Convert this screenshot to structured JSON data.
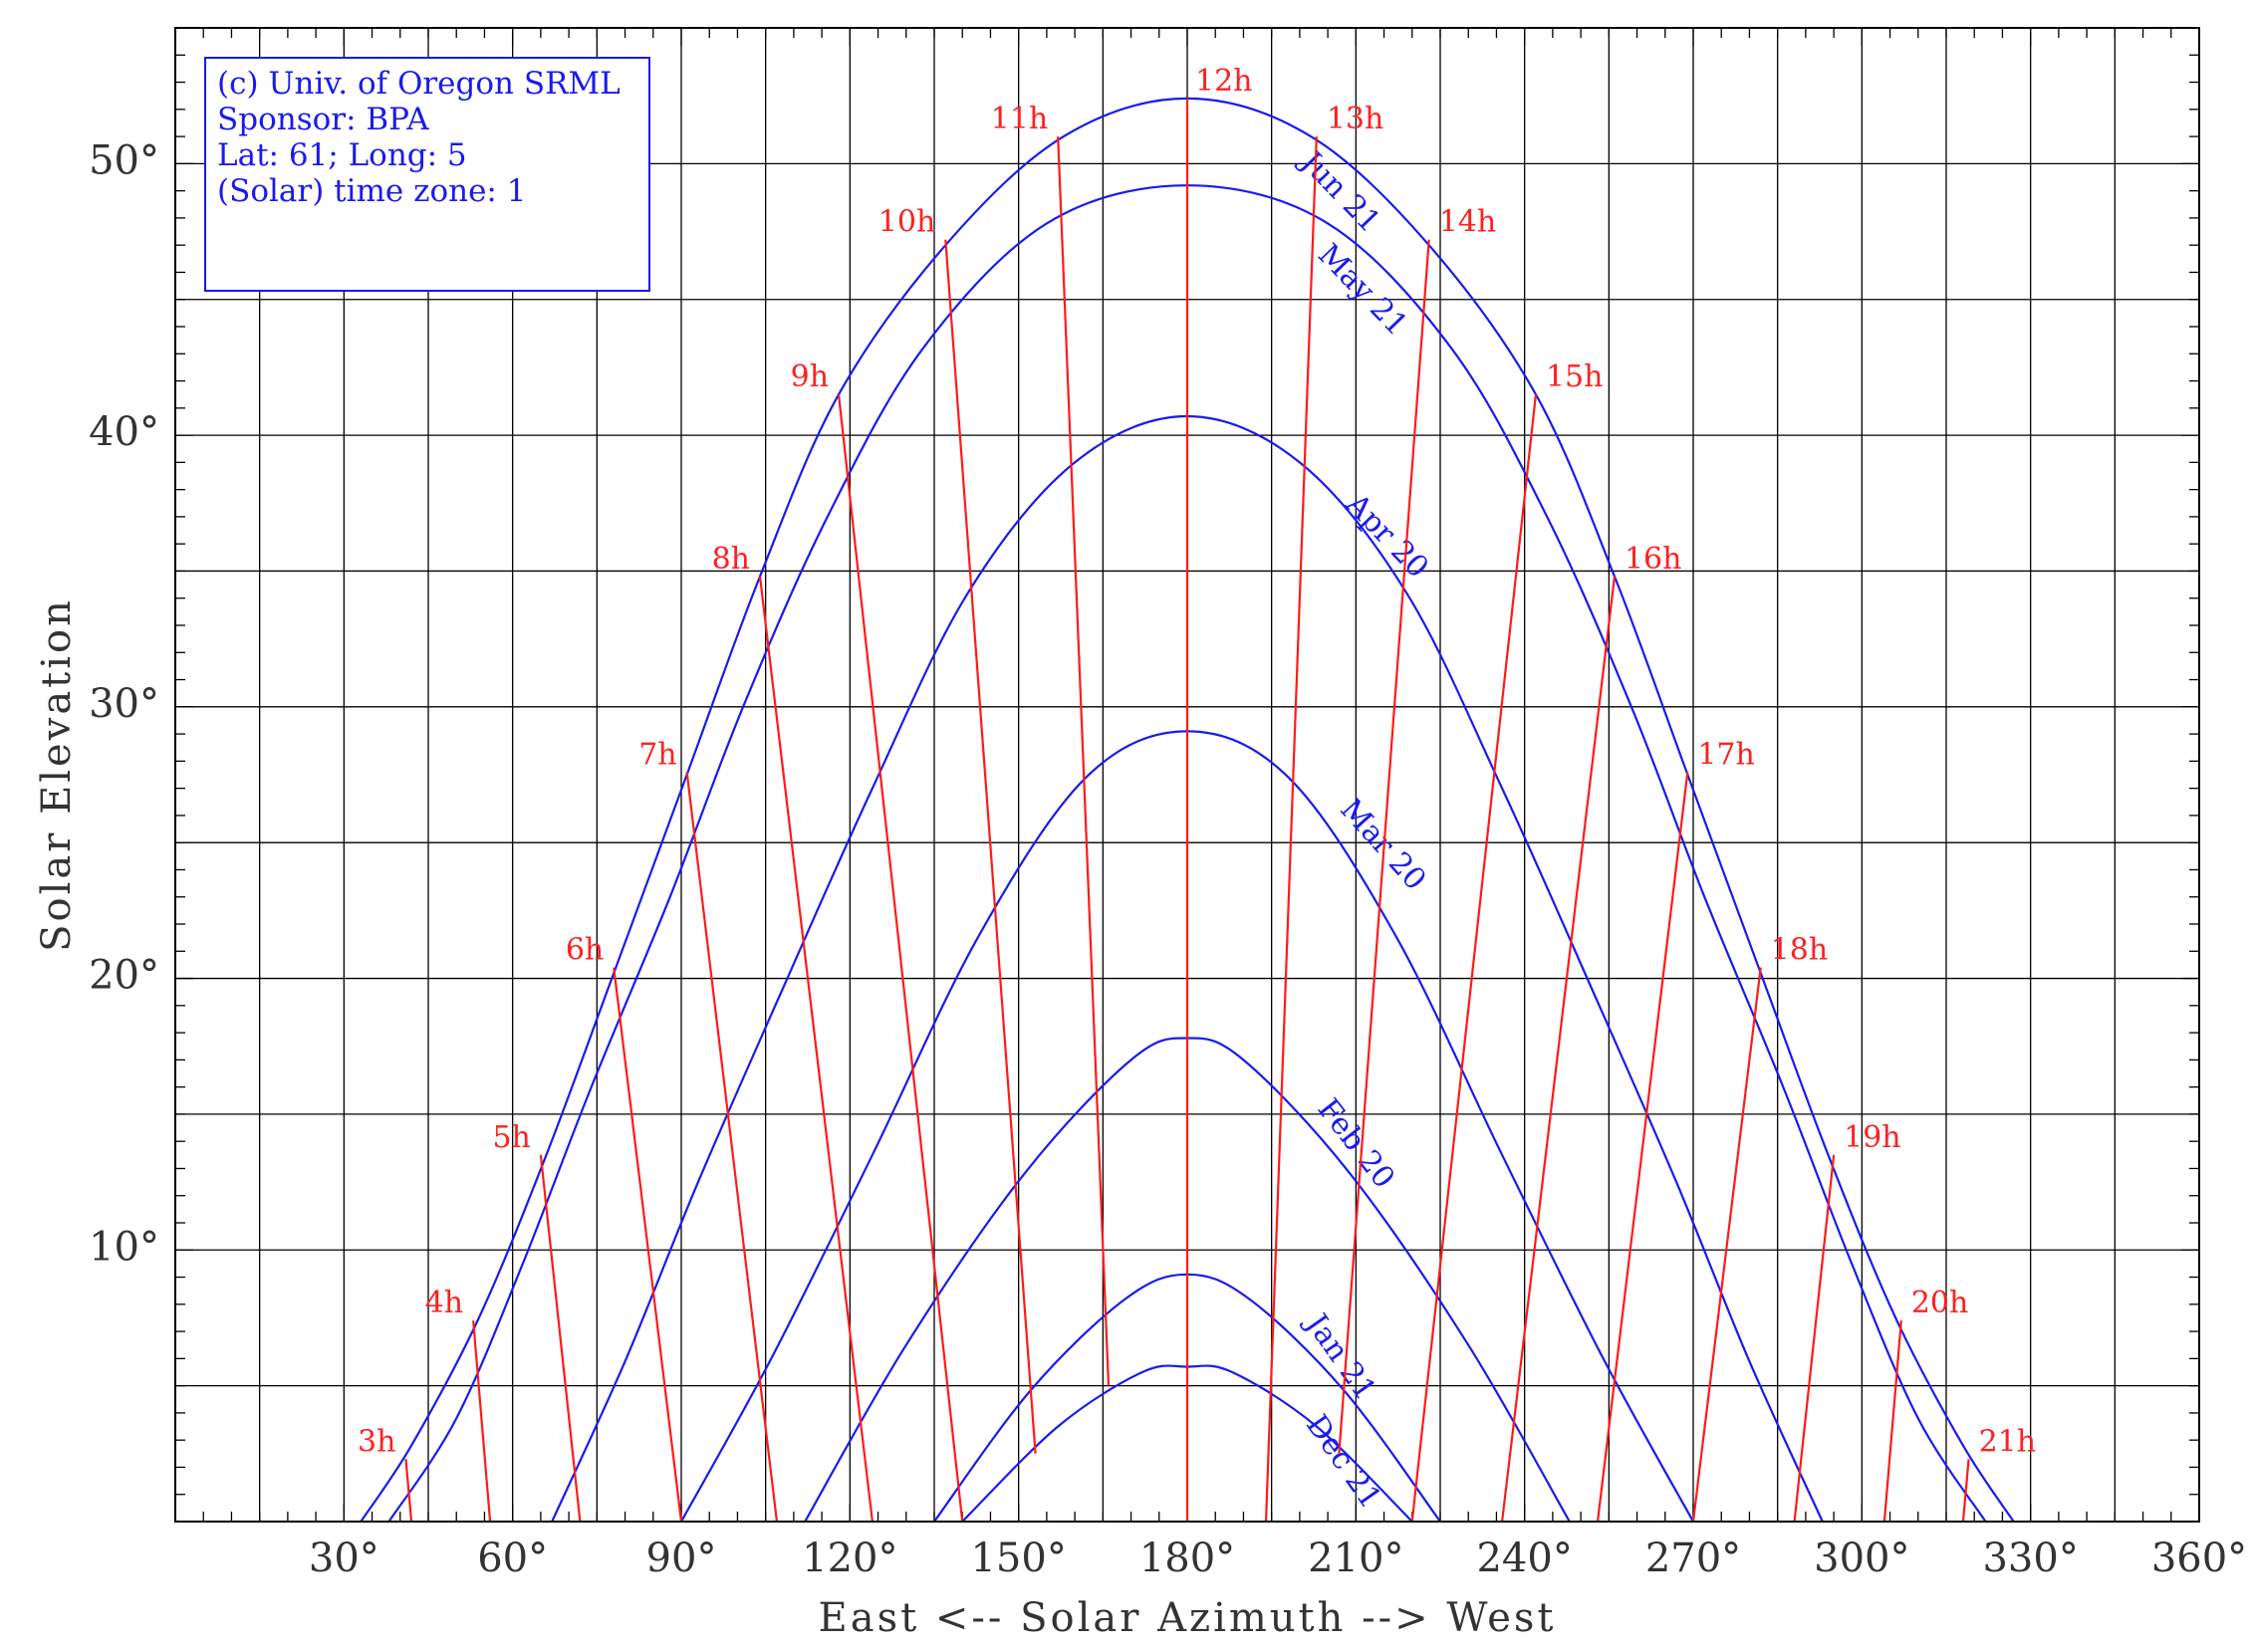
{
  "chart_data": {
    "type": "line",
    "title": "",
    "xlabel": "East <-- Solar Azimuth --> West",
    "ylabel": "Solar Elevation",
    "xlim": [
      0,
      360
    ],
    "ylim": [
      0,
      55
    ],
    "grid": true,
    "x_ticks": [
      {
        "value": 30,
        "label": "30°"
      },
      {
        "value": 60,
        "label": "60°"
      },
      {
        "value": 90,
        "label": "90°"
      },
      {
        "value": 120,
        "label": "120°"
      },
      {
        "value": 150,
        "label": "150°"
      },
      {
        "value": 180,
        "label": "180°"
      },
      {
        "value": 210,
        "label": "210°"
      },
      {
        "value": 240,
        "label": "240°"
      },
      {
        "value": 270,
        "label": "270°"
      },
      {
        "value": 300,
        "label": "300°"
      },
      {
        "value": 330,
        "label": "330°"
      },
      {
        "value": 360,
        "label": "360°"
      }
    ],
    "y_ticks": [
      {
        "value": 10,
        "label": "10°"
      },
      {
        "value": 20,
        "label": "20°"
      },
      {
        "value": 30,
        "label": "30°"
      },
      {
        "value": 40,
        "label": "40°"
      },
      {
        "value": 50,
        "label": "50°"
      }
    ],
    "info_box": [
      "(c) Univ. of Oregon SRML",
      "Sponsor: BPA",
      "Lat: 61; Long: 5",
      "(Solar) time zone: 1"
    ],
    "series": [
      {
        "name": "Jun 21",
        "color": "#1a1aee",
        "points": [
          [
            33,
            0
          ],
          [
            42,
            2.8
          ],
          [
            54,
            7.5
          ],
          [
            66,
            13.5
          ],
          [
            78,
            20.2
          ],
          [
            91,
            27.5
          ],
          [
            104,
            34.8
          ],
          [
            118,
            41.5
          ],
          [
            137,
            47
          ],
          [
            158,
            51
          ],
          [
            180,
            52.4
          ],
          [
            202,
            51
          ],
          [
            223,
            47
          ],
          [
            242,
            41.5
          ],
          [
            256,
            34.8
          ],
          [
            269,
            27.5
          ],
          [
            282,
            20.2
          ],
          [
            294,
            13.5
          ],
          [
            306,
            7.5
          ],
          [
            318,
            2.8
          ],
          [
            327,
            0
          ]
        ]
      },
      {
        "name": "May 21",
        "color": "#1a1aee",
        "points": [
          [
            38,
            0
          ],
          [
            50,
            3.8
          ],
          [
            62,
            9.6
          ],
          [
            74,
            16
          ],
          [
            88,
            23
          ],
          [
            101,
            30
          ],
          [
            116,
            37
          ],
          [
            133,
            43.2
          ],
          [
            155,
            47.8
          ],
          [
            180,
            49.2
          ],
          [
            205,
            47.8
          ],
          [
            227,
            43.2
          ],
          [
            244,
            37
          ],
          [
            259,
            30
          ],
          [
            272,
            23
          ],
          [
            286,
            16
          ],
          [
            298,
            9.6
          ],
          [
            310,
            3.8
          ],
          [
            322,
            0
          ]
        ]
      },
      {
        "name": "Apr 20",
        "color": "#1a1aee",
        "points": [
          [
            67,
            0
          ],
          [
            80,
            5.9
          ],
          [
            93,
            12.5
          ],
          [
            108,
            19.6
          ],
          [
            124,
            27
          ],
          [
            141,
            34.2
          ],
          [
            160,
            39
          ],
          [
            180,
            40.7
          ],
          [
            200,
            39
          ],
          [
            219,
            34.2
          ],
          [
            236,
            27
          ],
          [
            252,
            19.6
          ],
          [
            267,
            12.5
          ],
          [
            280,
            5.9
          ],
          [
            293,
            0
          ]
        ]
      },
      {
        "name": "Mar 20",
        "color": "#1a1aee",
        "points": [
          [
            90,
            0
          ],
          [
            106,
            6
          ],
          [
            124,
            13.5
          ],
          [
            143,
            21.6
          ],
          [
            162,
            27.4
          ],
          [
            180,
            29.1
          ],
          [
            198,
            27.4
          ],
          [
            217,
            21.6
          ],
          [
            236,
            13.5
          ],
          [
            254,
            6
          ],
          [
            270,
            0
          ]
        ]
      },
      {
        "name": "Feb 20",
        "color": "#1a1aee",
        "points": [
          [
            112,
            0
          ],
          [
            130,
            6.5
          ],
          [
            151,
            12.8
          ],
          [
            170,
            17
          ],
          [
            180,
            17.8
          ],
          [
            190,
            17
          ],
          [
            209,
            12.8
          ],
          [
            230,
            6.5
          ],
          [
            248,
            0
          ]
        ]
      },
      {
        "name": "Jan 21",
        "color": "#1a1aee",
        "points": [
          [
            135,
            0
          ],
          [
            152,
            4.8
          ],
          [
            169,
            8.2
          ],
          [
            180,
            9.1
          ],
          [
            191,
            8.2
          ],
          [
            208,
            4.8
          ],
          [
            225,
            0
          ]
        ]
      },
      {
        "name": "Dec 21",
        "color": "#1a1aee",
        "points": [
          [
            140,
            0
          ],
          [
            157,
            3.5
          ],
          [
            172,
            5.5
          ],
          [
            180,
            5.7
          ],
          [
            188,
            5.5
          ],
          [
            203,
            3.5
          ],
          [
            220,
            0
          ]
        ]
      }
    ],
    "hour_lines": [
      {
        "label": "3h",
        "points": [
          [
            41,
            2.3
          ],
          [
            42,
            0
          ]
        ]
      },
      {
        "label": "4h",
        "points": [
          [
            53,
            7.4
          ],
          [
            56,
            0
          ]
        ]
      },
      {
        "label": "5h",
        "points": [
          [
            65,
            13.5
          ],
          [
            72,
            0
          ]
        ]
      },
      {
        "label": "6h",
        "points": [
          [
            78,
            20.4
          ],
          [
            90,
            0
          ]
        ]
      },
      {
        "label": "7h",
        "points": [
          [
            91,
            27.6
          ],
          [
            107,
            0
          ]
        ]
      },
      {
        "label": "8h",
        "points": [
          [
            104,
            34.8
          ],
          [
            124,
            0
          ]
        ]
      },
      {
        "label": "9h",
        "points": [
          [
            118,
            41.5
          ],
          [
            140,
            0
          ]
        ]
      },
      {
        "label": "10h",
        "points": [
          [
            137,
            47.2
          ],
          [
            153,
            2.5
          ]
        ]
      },
      {
        "label": "11h",
        "points": [
          [
            157,
            51
          ],
          [
            166,
            5
          ]
        ]
      },
      {
        "label": "12h",
        "points": [
          [
            180,
            52.4
          ],
          [
            180,
            0
          ]
        ]
      },
      {
        "label": "13h",
        "points": [
          [
            203,
            51
          ],
          [
            194,
            0
          ]
        ]
      },
      {
        "label": "14h",
        "points": [
          [
            223,
            47.2
          ],
          [
            207,
            2.5
          ]
        ]
      },
      {
        "label": "15h",
        "points": [
          [
            242,
            41.5
          ],
          [
            220,
            0
          ]
        ]
      },
      {
        "label": "16h",
        "points": [
          [
            256,
            34.8
          ],
          [
            236,
            0
          ]
        ]
      },
      {
        "label": "17h",
        "points": [
          [
            269,
            27.6
          ],
          [
            253,
            0
          ]
        ]
      },
      {
        "label": "18h",
        "points": [
          [
            282,
            20.4
          ],
          [
            270,
            0
          ]
        ]
      },
      {
        "label": "19h",
        "points": [
          [
            295,
            13.5
          ],
          [
            288,
            0
          ]
        ]
      },
      {
        "label": "20h",
        "points": [
          [
            307,
            7.4
          ],
          [
            304,
            0
          ]
        ]
      },
      {
        "label": "21h",
        "points": [
          [
            319,
            2.3
          ],
          [
            318,
            0
          ]
        ]
      }
    ]
  }
}
